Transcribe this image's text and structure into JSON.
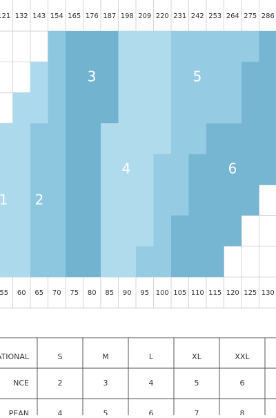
{
  "chart_top": [
    "121",
    "132",
    "143",
    "154",
    "165",
    "176",
    "187",
    "198",
    "209",
    "220",
    "231",
    "242",
    "253",
    "264",
    "275",
    "286"
  ],
  "chart_bottom": [
    "55",
    "60",
    "65",
    "70",
    "75",
    "80",
    "85",
    "90",
    "95",
    "100",
    "105",
    "110",
    "115",
    "120",
    "125",
    "130"
  ],
  "regions": [
    "1",
    "2",
    "3",
    "4",
    "5",
    "6"
  ],
  "table": {
    "rows": [
      [
        "ATIONAL",
        "S",
        "M",
        "L",
        "XL",
        "XXL"
      ],
      [
        "NCE",
        "2",
        "3",
        "4",
        "5",
        "6"
      ],
      [
        "PEAN",
        "4",
        "5",
        "6",
        "7",
        "8"
      ]
    ]
  }
}
